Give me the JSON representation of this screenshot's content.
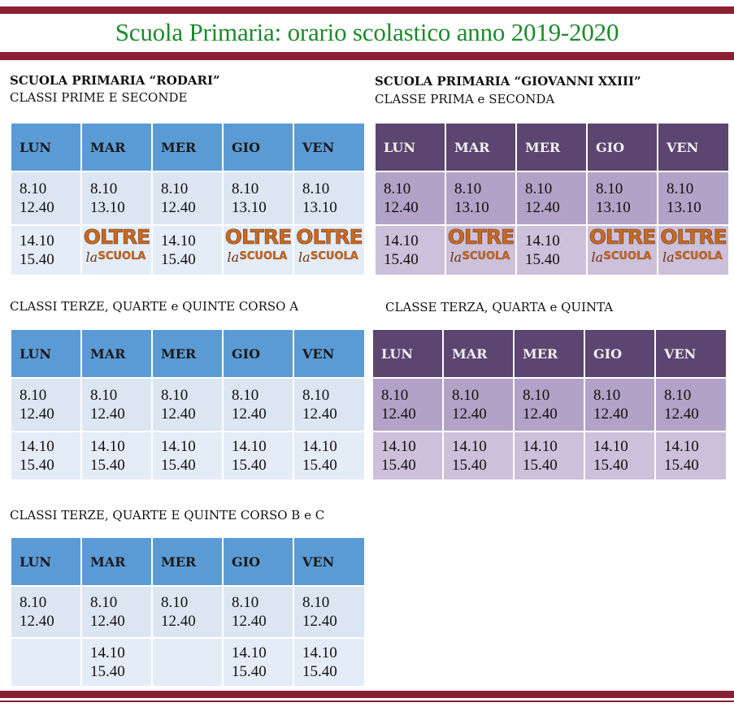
{
  "title": "Scuola Primaria: orario scolastico anno 2019-2020",
  "logo": {
    "line1": "OLTRE",
    "la": "la",
    "scuola": "SCUOLA"
  },
  "rodari": {
    "name": "SCUOLA PRIMARIA “RODARI”",
    "sections": [
      {
        "label": "CLASSI PRIME E SECONDE",
        "days": [
          "LUN",
          "MAR",
          "MER",
          "GIO",
          "VEN"
        ],
        "rows": [
          [
            "8.10\n12.40",
            "8.10\n13.10",
            "8.10\n12.40",
            "8.10\n13.10",
            "8.10\n13.10"
          ],
          [
            "14.10\n15.40",
            "",
            "14.10\n15.40",
            "",
            ""
          ]
        ]
      },
      {
        "label": "CLASSI TERZE, QUARTE e QUINTE CORSO A",
        "days": [
          "LUN",
          "MAR",
          "MER",
          "GIO",
          "VEN"
        ],
        "rows": [
          [
            "8.10\n12.40",
            "8.10\n12.40",
            "8.10\n12.40",
            "8.10\n12.40",
            "8.10\n12.40"
          ],
          [
            "14.10\n15.40",
            "14.10\n15.40",
            "14.10\n15.40",
            "14.10\n15.40",
            "14.10\n15.40"
          ]
        ]
      },
      {
        "label": "CLASSI TERZE, QUARTE E QUINTE CORSO B e C",
        "days": [
          "LUN",
          "MAR",
          "MER",
          "GIO",
          "VEN"
        ],
        "rows": [
          [
            "8.10\n12.40",
            "8.10\n12.40",
            "8.10\n12.40",
            "8.10\n12.40",
            "8.10\n12.40"
          ],
          [
            "",
            "14.10\n15.40",
            "",
            "14.10\n15.40",
            "14.10\n15.40"
          ]
        ]
      }
    ]
  },
  "giovanni": {
    "name": "SCUOLA PRIMARIA “GIOVANNI XXIII”",
    "sections": [
      {
        "label": "CLASSE PRIMA e SECONDA",
        "days": [
          "LUN",
          "MAR",
          "MER",
          "GIO",
          "VEN"
        ],
        "rows": [
          [
            "8.10\n12.40",
            "8.10\n13.10",
            "8.10\n12.40",
            "8.10\n13.10",
            "8.10\n13.10"
          ],
          [
            "14.10\n15.40",
            "",
            "14.10\n15.40",
            "",
            ""
          ]
        ]
      },
      {
        "label": "CLASSE TERZA, QUARTA e QUINTA",
        "days": [
          "LUN",
          "MAR",
          "MER",
          "GIO",
          "VEN"
        ],
        "rows": [
          [
            "8.10\n12.40",
            "8.10\n12.40",
            "8.10\n12.40",
            "8.10\n12.40",
            "8.10\n12.40"
          ],
          [
            "14.10\n15.40",
            "14.10\n15.40",
            "14.10\n15.40",
            "14.10\n15.40",
            "14.10\n15.40"
          ]
        ]
      }
    ]
  }
}
